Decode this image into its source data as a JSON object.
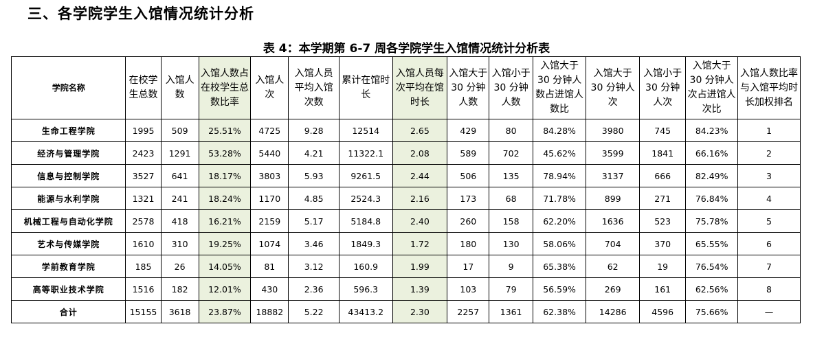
{
  "section_heading": "三、各学院学生入馆情况统计分析",
  "table_caption": "表 4：本学期第 6-7 周各学院学生入馆情况统计分析表",
  "columns": [
    {
      "label": "学院名称",
      "highlight": false
    },
    {
      "label": "在校学生总数",
      "highlight": false
    },
    {
      "label": "入馆人数",
      "highlight": false
    },
    {
      "label": "入馆人数占在校学生总数比率",
      "highlight": true
    },
    {
      "label": "入馆人次",
      "highlight": false
    },
    {
      "label": "入馆人员平均入馆次数",
      "highlight": false
    },
    {
      "label": "累计在馆时长",
      "highlight": false
    },
    {
      "label": "入馆人员每次平均在馆时长",
      "highlight": true
    },
    {
      "label": "入馆大于 30 分钟人数",
      "highlight": false
    },
    {
      "label": "入馆小于 30 分钟人数",
      "highlight": false
    },
    {
      "label": "入馆大于 30 分钟人数占进馆人数比",
      "highlight": false
    },
    {
      "label": "入馆大于 30 分钟人次",
      "highlight": false
    },
    {
      "label": "入馆小于 30 分钟人次",
      "highlight": false
    },
    {
      "label": "入馆大于 30 分钟人次占进馆人次比",
      "highlight": false
    },
    {
      "label": "入馆人数比率与入馆平均时长加权排名",
      "highlight": false
    }
  ],
  "rows": [
    [
      "生命工程学院",
      "1995",
      "509",
      "25.51%",
      "4725",
      "9.28",
      "12514",
      "2.65",
      "429",
      "80",
      "84.28%",
      "3980",
      "745",
      "84.23%",
      "1"
    ],
    [
      "经济与管理学院",
      "2423",
      "1291",
      "53.28%",
      "5440",
      "4.21",
      "11322.1",
      "2.08",
      "589",
      "702",
      "45.62%",
      "3599",
      "1841",
      "66.16%",
      "2"
    ],
    [
      "信息与控制学院",
      "3527",
      "641",
      "18.17%",
      "3803",
      "5.93",
      "9261.5",
      "2.44",
      "506",
      "135",
      "78.94%",
      "3137",
      "666",
      "82.49%",
      "3"
    ],
    [
      "能源与水利学院",
      "1321",
      "241",
      "18.24%",
      "1170",
      "4.85",
      "2524.3",
      "2.16",
      "173",
      "68",
      "71.78%",
      "899",
      "271",
      "76.84%",
      "4"
    ],
    [
      "机械工程与自动化学院",
      "2578",
      "418",
      "16.21%",
      "2159",
      "5.17",
      "5184.8",
      "2.40",
      "260",
      "158",
      "62.20%",
      "1636",
      "523",
      "75.78%",
      "5"
    ],
    [
      "艺术与传媒学院",
      "1610",
      "310",
      "19.25%",
      "1074",
      "3.46",
      "1849.3",
      "1.72",
      "180",
      "130",
      "58.06%",
      "704",
      "370",
      "65.55%",
      "6"
    ],
    [
      "学前教育学院",
      "185",
      "26",
      "14.05%",
      "81",
      "3.12",
      "160.9",
      "1.99",
      "17",
      "9",
      "65.38%",
      "62",
      "19",
      "76.54%",
      "7"
    ],
    [
      "高等职业技术学院",
      "1516",
      "182",
      "12.01%",
      "430",
      "2.36",
      "596.3",
      "1.39",
      "103",
      "79",
      "56.59%",
      "269",
      "161",
      "62.56%",
      "8"
    ],
    [
      "合计",
      "15155",
      "3618",
      "23.87%",
      "18882",
      "5.22",
      "43413.2",
      "2.30",
      "2257",
      "1361",
      "62.38%",
      "14286",
      "4596",
      "75.66%",
      "—"
    ]
  ],
  "colors": {
    "highlight": "#ebf1de",
    "border": "#000000"
  }
}
